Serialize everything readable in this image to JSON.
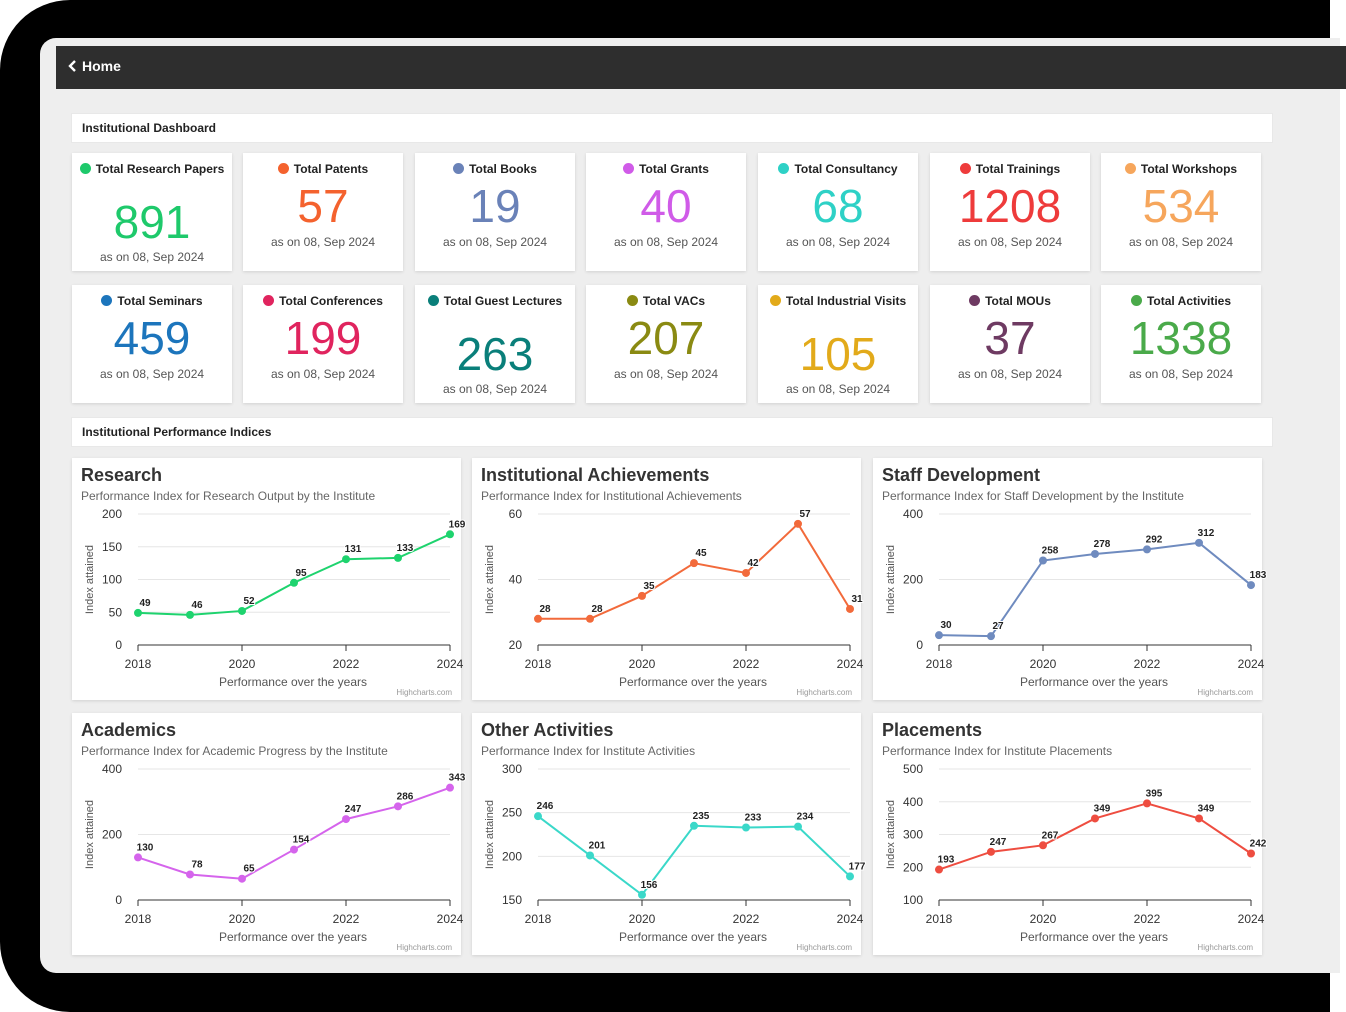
{
  "header": {
    "back_label": "Home"
  },
  "sections": {
    "dashboard_title": "Institutional Dashboard",
    "indices_title": "Institutional Performance Indices"
  },
  "stats": [
    {
      "label": "Total Research Papers",
      "value": "891",
      "date": "as on 08, Sep 2024",
      "color": "#1ec96b"
    },
    {
      "label": "Total Patents",
      "value": "57",
      "date": "as on 08, Sep 2024",
      "color": "#f4622e"
    },
    {
      "label": "Total Books",
      "value": "19",
      "date": "as on 08, Sep 2024",
      "color": "#6a82b8"
    },
    {
      "label": "Total Grants",
      "value": "40",
      "date": "as on 08, Sep 2024",
      "color": "#d05be8"
    },
    {
      "label": "Total Consultancy",
      "value": "68",
      "date": "as on 08, Sep 2024",
      "color": "#2ed1c6"
    },
    {
      "label": "Total Trainings",
      "value": "1208",
      "date": "as on 08, Sep 2024",
      "color": "#ee3b3b"
    },
    {
      "label": "Total Workshops",
      "value": "534",
      "date": "as on 08, Sep 2024",
      "color": "#f6a65c"
    },
    {
      "label": "Total Seminars",
      "value": "459",
      "date": "as on 08, Sep 2024",
      "color": "#1c75bc"
    },
    {
      "label": "Total Conferences",
      "value": "199",
      "date": "as on 08, Sep 2024",
      "color": "#e0245e"
    },
    {
      "label": "Total Guest Lectures",
      "value": "263",
      "date": "as on 08, Sep 2024",
      "color": "#0a7f7a"
    },
    {
      "label": "Total VACs",
      "value": "207",
      "date": "as on 08, Sep 2024",
      "color": "#8a8a12"
    },
    {
      "label": "Total Industrial Visits",
      "value": "105",
      "date": "as on 08, Sep 2024",
      "color": "#e2aa1a"
    },
    {
      "label": "Total MOUs",
      "value": "37",
      "date": "as on 08, Sep 2024",
      "color": "#6e3a62"
    },
    {
      "label": "Total Activities",
      "value": "1338",
      "date": "as on 08, Sep 2024",
      "color": "#4aaa4a"
    }
  ],
  "chart_data": [
    {
      "type": "line",
      "title": "Research",
      "subtitle": "Performance Index for Research Output by the Institute",
      "xlabel": "Performance over the years",
      "ylabel": "Index attained",
      "credit": "Highcharts.com",
      "color": "#1ed36e",
      "x": [
        2018,
        2019,
        2020,
        2021,
        2022,
        2023,
        2024
      ],
      "y": [
        49,
        46,
        52,
        95,
        131,
        133,
        169
      ],
      "ylim": [
        0,
        200
      ],
      "yticks": [
        0,
        50,
        100,
        150,
        200
      ],
      "xticks": [
        2018,
        2020,
        2022,
        2024
      ],
      "grid": true
    },
    {
      "type": "line",
      "title": "Institutional Achievements",
      "subtitle": "Performance Index for Institutional Achievements",
      "xlabel": "Performance over the years",
      "ylabel": "Index attained",
      "credit": "Highcharts.com",
      "color": "#f26a3b",
      "x": [
        2018,
        2019,
        2020,
        2021,
        2022,
        2023,
        2024
      ],
      "y": [
        28,
        28,
        35,
        45,
        42,
        57,
        31
      ],
      "ylim": [
        20,
        60
      ],
      "yticks": [
        20,
        40,
        60
      ],
      "xticks": [
        2018,
        2020,
        2022,
        2024
      ],
      "grid": true
    },
    {
      "type": "line",
      "title": "Staff Development",
      "subtitle": "Performance Index for Staff Development by the Institute",
      "xlabel": "Performance over the years",
      "ylabel": "Index attained",
      "credit": "Highcharts.com",
      "color": "#6f8bbf",
      "x": [
        2018,
        2019,
        2020,
        2021,
        2022,
        2023,
        2024
      ],
      "y": [
        30,
        27,
        258,
        278,
        292,
        312,
        183
      ],
      "ylim": [
        0,
        400
      ],
      "yticks": [
        0,
        200,
        400
      ],
      "xticks": [
        2018,
        2020,
        2022,
        2024
      ],
      "grid": true
    },
    {
      "type": "line",
      "title": "Academics",
      "subtitle": "Performance Index for Academic Progress by the Institute",
      "xlabel": "Performance over the years",
      "ylabel": "Index attained",
      "credit": "Highcharts.com",
      "color": "#d564ec",
      "x": [
        2018,
        2019,
        2020,
        2021,
        2022,
        2023,
        2024
      ],
      "y": [
        130,
        78,
        65,
        154,
        247,
        286,
        343
      ],
      "ylim": [
        0,
        400
      ],
      "yticks": [
        0,
        200,
        400
      ],
      "xticks": [
        2018,
        2020,
        2022,
        2024
      ],
      "grid": true
    },
    {
      "type": "line",
      "title": "Other Activities",
      "subtitle": "Performance Index for Institute Activities",
      "xlabel": "Performance over the years",
      "ylabel": "Index attained",
      "credit": "Highcharts.com",
      "color": "#3ad8c9",
      "x": [
        2018,
        2019,
        2020,
        2021,
        2022,
        2023,
        2024
      ],
      "y": [
        246,
        201,
        156,
        235,
        233,
        234,
        177
      ],
      "ylim": [
        150,
        300
      ],
      "yticks": [
        150,
        200,
        250,
        300
      ],
      "xticks": [
        2018,
        2020,
        2022,
        2024
      ],
      "grid": true
    },
    {
      "type": "line",
      "title": "Placements",
      "subtitle": "Performance Index for Institute Placements",
      "xlabel": "Performance over the years",
      "ylabel": "Index attained",
      "credit": "Highcharts.com",
      "color": "#ee4d40",
      "x": [
        2018,
        2019,
        2020,
        2021,
        2022,
        2023,
        2024
      ],
      "y": [
        193,
        247,
        267,
        349,
        395,
        349,
        242
      ],
      "ylim": [
        100,
        500
      ],
      "yticks": [
        100,
        200,
        300,
        400,
        500
      ],
      "xticks": [
        2018,
        2020,
        2022,
        2024
      ],
      "grid": true
    }
  ]
}
